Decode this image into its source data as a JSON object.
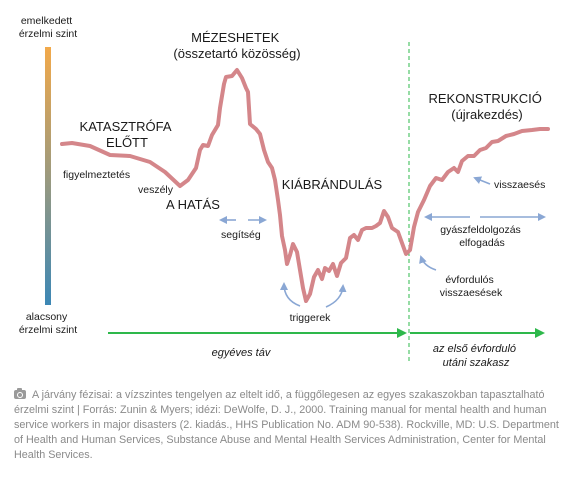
{
  "figure": {
    "axis_top_label": [
      "emelkedett",
      "érzelmi szint"
    ],
    "axis_bottom_label": [
      "alacsony",
      "érzelmi szint"
    ],
    "phases": {
      "before": [
        "KATASZTRÓFA",
        "ELŐTT"
      ],
      "impact": "A HATÁS",
      "honeymoon": [
        "MÉZESHETEK",
        "(összetartó közösség)"
      ],
      "disillusionment": "KIÁBRÁNDULÁS",
      "reconstruction": [
        "REKONSTRUKCIÓ",
        "(újrakezdés)"
      ]
    },
    "annotations": {
      "warning": "figyelmeztetés",
      "threat": "veszély",
      "help": "segítség",
      "triggers": "triggerek",
      "setback": "visszaesés",
      "grief": [
        "gyászfeldolgozás",
        "elfogadás"
      ],
      "anniversary": [
        "évfordulós",
        "visszaesések"
      ]
    },
    "timeline": {
      "first_year": "egyéves táv",
      "after_anniversary": [
        "az első évforduló",
        "utáni szakasz"
      ]
    },
    "colors": {
      "curve": "#d4868a",
      "arrow_blue": "#8aa7d4",
      "timeline_green": "#2eb84b",
      "gradient_top": "#f2a94a",
      "gradient_bottom": "#3c87b5"
    }
  },
  "caption": {
    "icon": "camera-icon",
    "text": "A járvány fézisai: a vízszintes tengelyen az eltelt idő, a függőlegesen az egyes szakaszokban tapasztalható érzelmi szint | Forrás: Zunin & Myers; idézi: DeWolfe, D. J., 2000. Training manual for mental health and human service workers in major disasters (2. kiadás., HHS Publication No. ADM 90-538). Rockville, MD: U.S. Department of Health and Human Services, Substance Abuse and Mental Health Services Administration, Center for Mental Health Services."
  }
}
